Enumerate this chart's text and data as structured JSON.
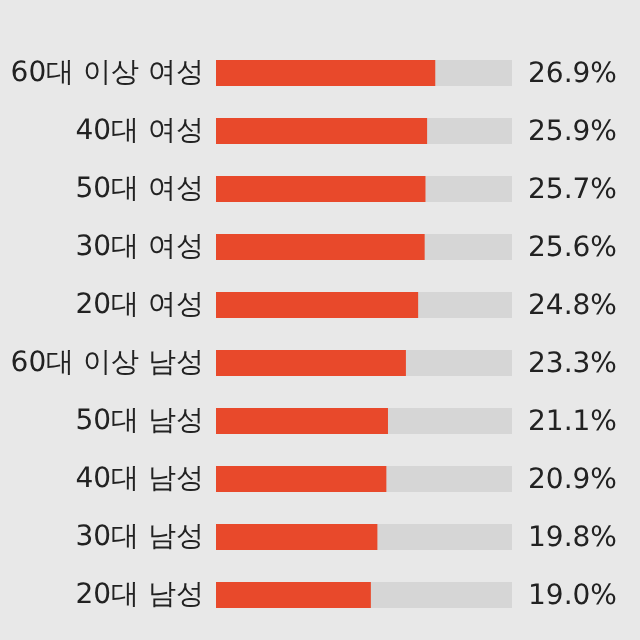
{
  "chart_data": {
    "type": "bar",
    "orientation": "horizontal",
    "categories": [
      "60대 이상 여성",
      "40대 여성",
      "50대 여성",
      "30대 여성",
      "20대 여성",
      "60대 이상 남성",
      "50대 남성",
      "40대 남성",
      "30대 남성",
      "20대 남성"
    ],
    "values": [
      26.9,
      25.9,
      25.7,
      25.6,
      24.8,
      23.3,
      21.1,
      20.9,
      19.8,
      19.0
    ],
    "value_labels": [
      "26.9%",
      "25.9%",
      "25.7%",
      "25.6%",
      "24.8%",
      "23.3%",
      "21.1%",
      "20.9%",
      "19.8%",
      "19.0%"
    ],
    "color": "#e8492b"
  }
}
